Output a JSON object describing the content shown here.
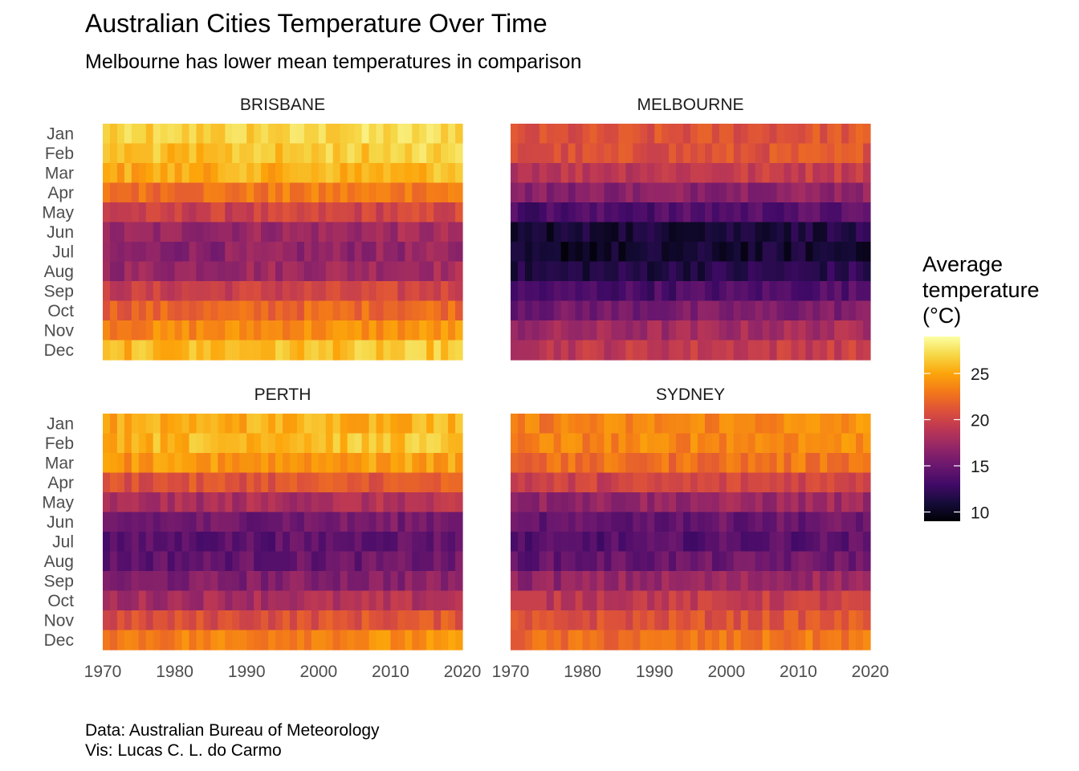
{
  "chart_data": {
    "type": "heatmap",
    "title": "Australian Cities Temperature Over Time",
    "subtitle": "Melbourne has lower mean temperatures in comparison",
    "caption": [
      "Data: Australian Bureau of Meteorology",
      "Vis: Lucas C. L. do Carmo"
    ],
    "months": [
      "Jan",
      "Feb",
      "Mar",
      "Apr",
      "May",
      "Jun",
      "Jul",
      "Aug",
      "Sep",
      "Oct",
      "Nov",
      "Dec"
    ],
    "x_ticks": [
      "1970",
      "1980",
      "1990",
      "2000",
      "2010",
      "2020"
    ],
    "xlim": [
      1970,
      2019
    ],
    "legend": {
      "title": [
        "Average",
        "temperature",
        "(°C)"
      ],
      "ticks": [
        "25",
        "20",
        "15",
        "10"
      ],
      "range": [
        9,
        29
      ],
      "palette": "inferno"
    },
    "panels": [
      {
        "name": "BRISBANE",
        "monthly_means": [
          26.5,
          26.0,
          25.0,
          22.5,
          19.5,
          17.0,
          16.3,
          17.2,
          19.5,
          21.8,
          23.5,
          25.6
        ]
      },
      {
        "name": "MELBOURNE",
        "monthly_means": [
          20.5,
          20.5,
          19.0,
          16.3,
          13.4,
          10.8,
          10.2,
          11.3,
          13.2,
          15.3,
          17.3,
          19.0
        ]
      },
      {
        "name": "PERTH",
        "monthly_means": [
          25.0,
          25.6,
          24.0,
          20.8,
          17.8,
          15.0,
          14.0,
          14.4,
          15.8,
          17.8,
          20.5,
          23.2
        ]
      },
      {
        "name": "SYDNEY",
        "monthly_means": [
          23.2,
          23.3,
          22.2,
          19.7,
          16.8,
          14.4,
          13.6,
          14.6,
          16.8,
          19.0,
          20.6,
          22.2
        ]
      }
    ]
  }
}
